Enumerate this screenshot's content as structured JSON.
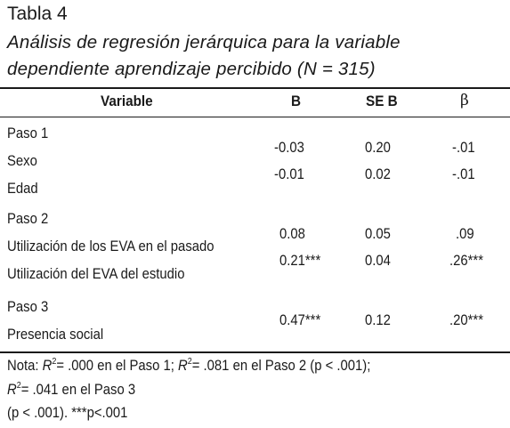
{
  "table": {
    "title": "Tabla 4",
    "caption_line1": "Análisis de regresión jerárquica para la variable",
    "caption_line2": "dependiente aprendizaje percibido (N = 315)",
    "headers": {
      "variable": "Variable",
      "b": "B",
      "se_b": "SE B",
      "beta": "β"
    },
    "steps": [
      {
        "label": "Paso 1",
        "rows": [
          {
            "variable": "Sexo",
            "b": "-0.03",
            "se_b": "0.20",
            "beta": "-.01"
          },
          {
            "variable": "Edad",
            "b": "-0.01",
            "se_b": "0.02",
            "beta": "-.01"
          }
        ]
      },
      {
        "label": "Paso 2",
        "rows": [
          {
            "variable": "Utilización de los EVA en el pasado",
            "b": "0.08",
            "se_b": "0.05",
            "beta": ".09"
          },
          {
            "variable": "Utilización del EVA del estudio",
            "b": "0.21***",
            "se_b": "0.04",
            "beta": ".26***"
          }
        ]
      },
      {
        "label": "Paso 3",
        "rows": [
          {
            "variable": "Presencia social",
            "b": "0.47***",
            "se_b": "0.12",
            "beta": ".20***"
          }
        ]
      }
    ],
    "note": {
      "prefix": "Nota: ",
      "r_letter": "R",
      "r_exp": "2",
      "seg1": "= .000 en el Paso 1;  ",
      "seg2": "= .081 en el Paso 2 (p < .001);",
      "seg3": "= .041 en el Paso 3",
      "line3": "(p < .001). ***p<.001"
    }
  }
}
